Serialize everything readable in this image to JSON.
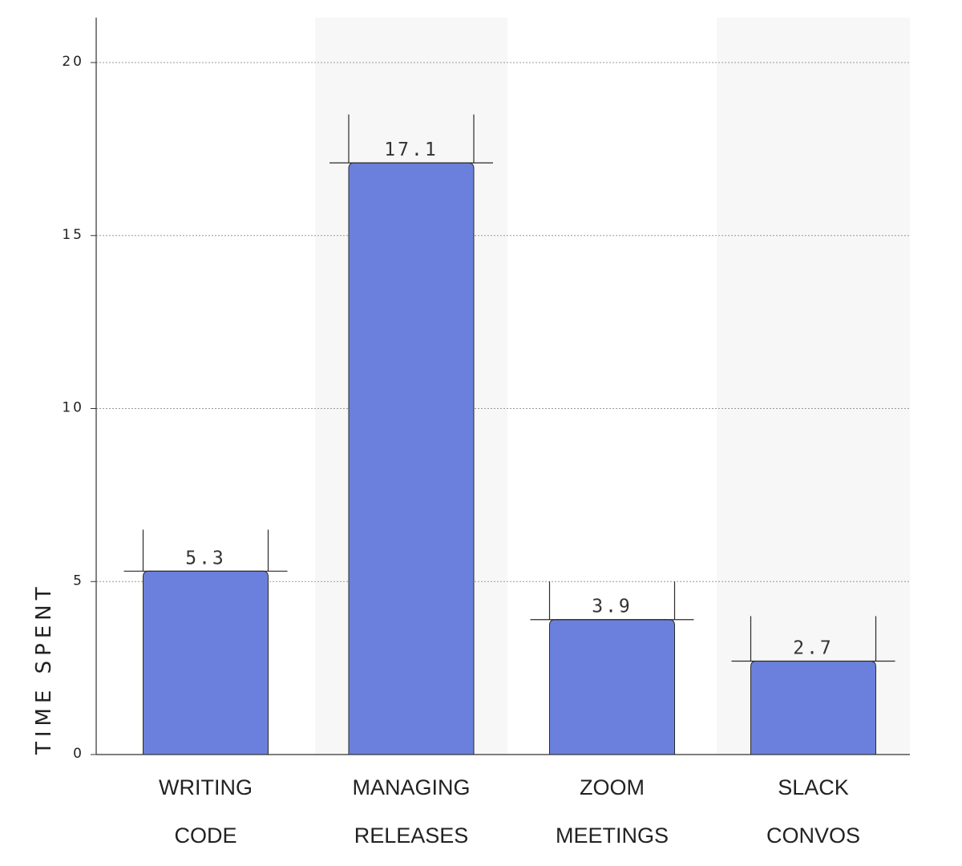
{
  "chart_data": {
    "type": "bar",
    "title": "",
    "xlabel": "",
    "ylabel": "TIME SPENT",
    "categories": [
      [
        "WRITING",
        "CODE"
      ],
      [
        "MANAGING",
        "RELEASES"
      ],
      [
        "ZOOM",
        "MEETINGS"
      ],
      [
        "SLACK",
        "CONVOS"
      ]
    ],
    "values": [
      5.3,
      17.1,
      3.9,
      2.7
    ],
    "value_labels": [
      "5.3",
      "17.1",
      "3.9",
      "2.7"
    ],
    "error_upper": [
      6.5,
      18.5,
      5.0,
      4.0
    ],
    "ylim": [
      0,
      21
    ],
    "yticks": [
      0,
      5,
      10,
      15,
      20
    ],
    "grid": true,
    "alternating_bands": true,
    "colors": {
      "bar": "#6b80dc",
      "bar_edge": "#2a2a2a",
      "band": "#f7f7f7",
      "grid": "#999999",
      "axis": "#333333"
    }
  }
}
